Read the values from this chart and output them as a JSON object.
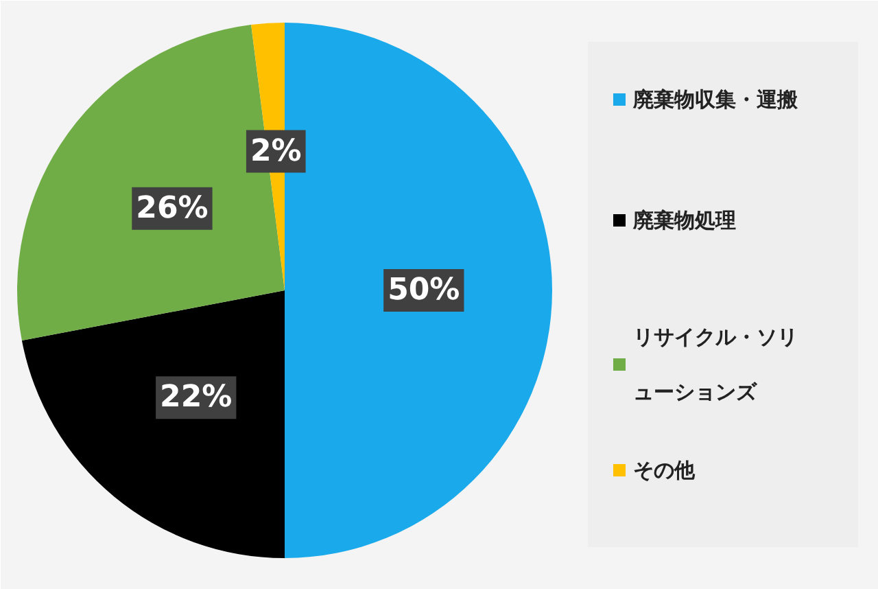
{
  "chart_data": {
    "type": "pie",
    "categories": [
      "廃棄物収集・運搬",
      "廃棄物処理",
      "リサイクル・ソリューションズ",
      "その他"
    ],
    "values": [
      50,
      22,
      26,
      2
    ],
    "colors": [
      "#1aa9ea",
      "#000000",
      "#70ad47",
      "#ffc000"
    ],
    "value_labels": [
      "50%",
      "22%",
      "26%",
      "2%"
    ],
    "legend": "right"
  }
}
